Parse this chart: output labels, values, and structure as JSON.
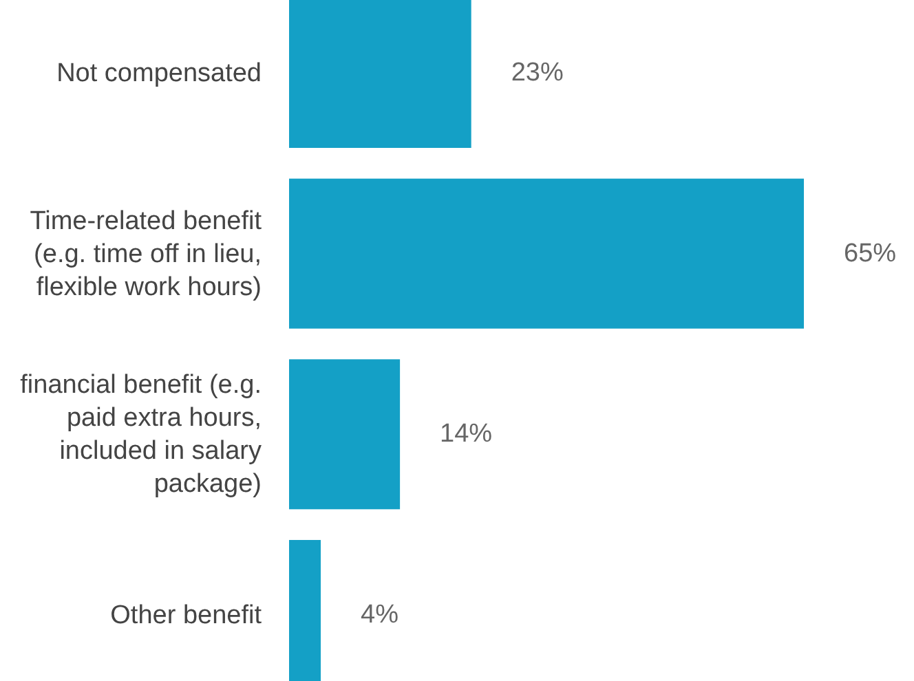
{
  "chart_data": {
    "type": "bar",
    "orientation": "horizontal",
    "categories": [
      "Not compensated",
      "Time-related benefit (e.g. time off in lieu, flexible work hours)",
      "financial benefit (e.g. paid extra hours, included in salary package)",
      "Other benefit"
    ],
    "values": [
      23,
      65,
      14,
      4
    ],
    "value_labels": [
      "23%",
      "65%",
      "14%",
      "4%"
    ],
    "color": "#14a0c6"
  }
}
